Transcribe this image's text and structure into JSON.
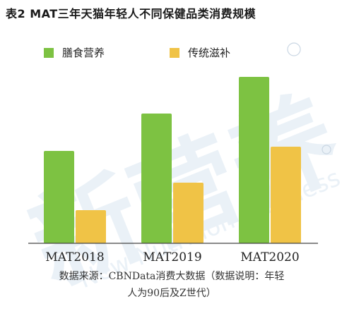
{
  "header": {
    "title": "表2 MAT三年天猫年轻人不同保健品类消费规模"
  },
  "legend": [
    {
      "label": "膳食营养",
      "color": "#7dc242"
    },
    {
      "label": "传统滋补",
      "color": "#f0c346"
    }
  ],
  "watermark": {
    "cn": "新营养",
    "en": "New Nutrition Business",
    "mark": "®"
  },
  "chart_data": {
    "type": "bar",
    "categories": [
      "MAT2018",
      "MAT2019",
      "MAT2020"
    ],
    "series": [
      {
        "name": "膳食营养",
        "values": [
          131,
          184,
          236
        ],
        "color": "#7dc242"
      },
      {
        "name": "传统滋补",
        "values": [
          47,
          86,
          137
        ],
        "color": "#f0c346"
      }
    ],
    "ylim": [
      0,
      250
    ],
    "grid": false,
    "legend_position": "top-left"
  },
  "footer": {
    "source_line1": "数据来源：CBNData消费大数据（数据说明：年轻",
    "source_line2": "人为90后及Z世代）"
  }
}
